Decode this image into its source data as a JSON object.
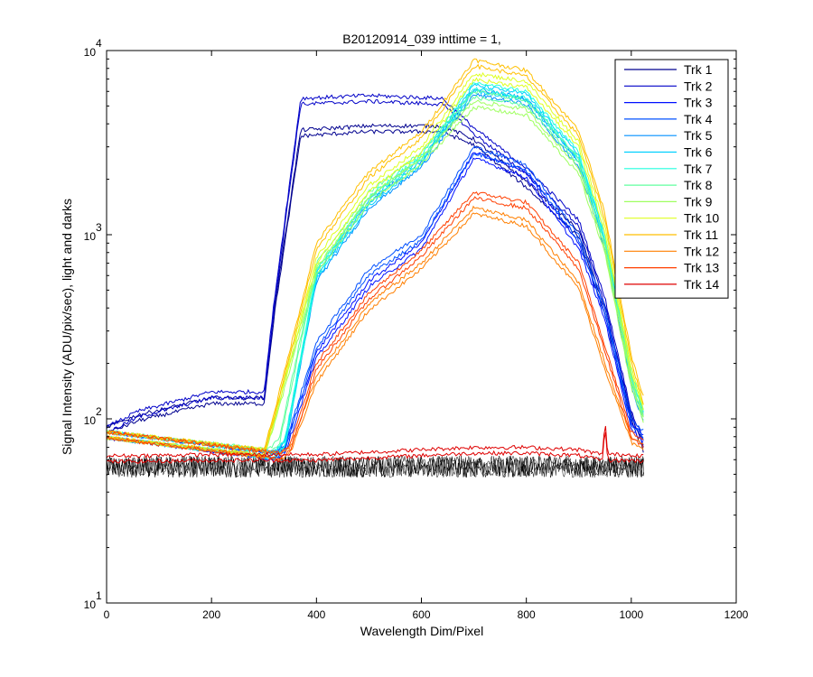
{
  "chart_data": {
    "type": "line",
    "title": "B20120914_039 inttime = 1,",
    "xlabel": "Wavelength Dim/Pixel",
    "ylabel": "Signal Intensity (ADU/pix/sec), light and darks",
    "xlim": [
      0,
      1200
    ],
    "ylim": [
      10,
      10000
    ],
    "yscale": "log",
    "xticks": [
      "0",
      "200",
      "400",
      "600",
      "800",
      "1000",
      "1200"
    ],
    "yticks": [
      {
        "base": "10",
        "exp": "1"
      },
      {
        "base": "10",
        "exp": "2"
      },
      {
        "base": "10",
        "exp": "3"
      },
      {
        "base": "10",
        "exp": "4"
      }
    ],
    "grid": false,
    "legend_position": "top-right",
    "series": [
      {
        "name": "Trk 1",
        "color": "#00008f",
        "x": [
          0,
          60,
          200,
          300,
          320,
          370,
          500,
          640,
          700,
          800,
          900,
          950,
          1000,
          1025
        ],
        "y": [
          90,
          105,
          130,
          130,
          400,
          3700,
          3900,
          3900,
          3300,
          1950,
          1050,
          390,
          105,
          70
        ]
      },
      {
        "name": "Trk 2",
        "color": "#0000c8",
        "x": [
          0,
          60,
          200,
          300,
          320,
          370,
          500,
          640,
          700,
          800,
          900,
          950,
          1000,
          1025
        ],
        "y": [
          90,
          110,
          140,
          140,
          450,
          5500,
          5700,
          5500,
          3800,
          2300,
          1200,
          450,
          110,
          75
        ]
      },
      {
        "name": "Trk 3",
        "color": "#0010ff",
        "x": [
          0,
          320,
          340,
          400,
          500,
          600,
          700,
          800,
          900,
          950,
          1000,
          1025
        ],
        "y": [
          85,
          65,
          70,
          230,
          560,
          900,
          2800,
          2200,
          900,
          370,
          95,
          80
        ]
      },
      {
        "name": "Trk 4",
        "color": "#0050ff",
        "x": [
          0,
          320,
          340,
          400,
          500,
          600,
          700,
          800,
          900,
          950,
          1000,
          1025
        ],
        "y": [
          85,
          65,
          72,
          260,
          650,
          1000,
          3000,
          2400,
          1000,
          400,
          100,
          85
        ]
      },
      {
        "name": "Trk 5",
        "color": "#0090ff",
        "x": [
          0,
          320,
          340,
          400,
          500,
          600,
          700,
          800,
          900,
          950,
          1000,
          1025
        ],
        "y": [
          85,
          66,
          75,
          600,
          1500,
          2500,
          6200,
          5500,
          2500,
          900,
          160,
          100
        ]
      },
      {
        "name": "Trk 6",
        "color": "#00d0ff",
        "x": [
          0,
          320,
          340,
          400,
          500,
          600,
          700,
          800,
          900,
          950,
          1000,
          1025
        ],
        "y": [
          85,
          66,
          76,
          620,
          1550,
          2600,
          6500,
          5800,
          2700,
          950,
          170,
          105
        ]
      },
      {
        "name": "Trk 7",
        "color": "#20ffdf",
        "x": [
          0,
          320,
          340,
          400,
          500,
          600,
          700,
          800,
          900,
          950,
          1000,
          1025
        ],
        "y": [
          85,
          66,
          77,
          640,
          1600,
          2700,
          6700,
          6000,
          2800,
          1000,
          180,
          110
        ]
      },
      {
        "name": "Trk 8",
        "color": "#60ff9f",
        "x": [
          0,
          310,
          330,
          400,
          500,
          600,
          700,
          800,
          900,
          950,
          1000,
          1025
        ],
        "y": [
          85,
          68,
          80,
          700,
          1700,
          2800,
          6000,
          5400,
          2600,
          900,
          170,
          105
        ]
      },
      {
        "name": "Trk 9",
        "color": "#9fff60",
        "x": [
          0,
          300,
          320,
          400,
          500,
          600,
          700,
          800,
          900,
          950,
          1000,
          1025
        ],
        "y": [
          85,
          68,
          100,
          660,
          1600,
          2600,
          5300,
          4800,
          2300,
          850,
          160,
          100
        ]
      },
      {
        "name": "Trk 10",
        "color": "#dfff20",
        "x": [
          0,
          300,
          320,
          400,
          500,
          600,
          700,
          800,
          900,
          950,
          1000,
          1025
        ],
        "y": [
          85,
          68,
          105,
          750,
          1850,
          3000,
          7500,
          6800,
          3200,
          1100,
          190,
          115
        ]
      },
      {
        "name": "Trk 11",
        "color": "#ffbf00",
        "x": [
          0,
          300,
          320,
          400,
          500,
          600,
          700,
          800,
          900,
          950,
          1000,
          1025
        ],
        "y": [
          85,
          68,
          110,
          900,
          2200,
          3600,
          8900,
          7800,
          3700,
          1300,
          220,
          125
        ]
      },
      {
        "name": "Trk 12",
        "color": "#ff7f00",
        "x": [
          0,
          330,
          350,
          400,
          500,
          600,
          700,
          800,
          900,
          950,
          1000,
          1025
        ],
        "y": [
          85,
          65,
          70,
          170,
          420,
          700,
          1400,
          1200,
          550,
          200,
          80,
          72
        ]
      },
      {
        "name": "Trk 13",
        "color": "#ff3f00",
        "x": [
          0,
          330,
          350,
          400,
          500,
          600,
          700,
          800,
          900,
          950,
          1000,
          1025
        ],
        "y": [
          85,
          65,
          72,
          200,
          480,
          820,
          1700,
          1500,
          700,
          250,
          85,
          75
        ]
      },
      {
        "name": "Trk 14",
        "color": "#df0000",
        "x": [
          0,
          40,
          200,
          400,
          600,
          700,
          800,
          900,
          945,
          950,
          955,
          1000,
          1025
        ],
        "y": [
          63,
          63,
          64,
          64,
          68,
          70,
          70,
          68,
          64,
          100,
          64,
          64,
          63
        ]
      }
    ],
    "dark_series": {
      "color": "#000000",
      "x_range": [
        0,
        1025
      ],
      "y_min": 48,
      "y_max": 63
    }
  }
}
